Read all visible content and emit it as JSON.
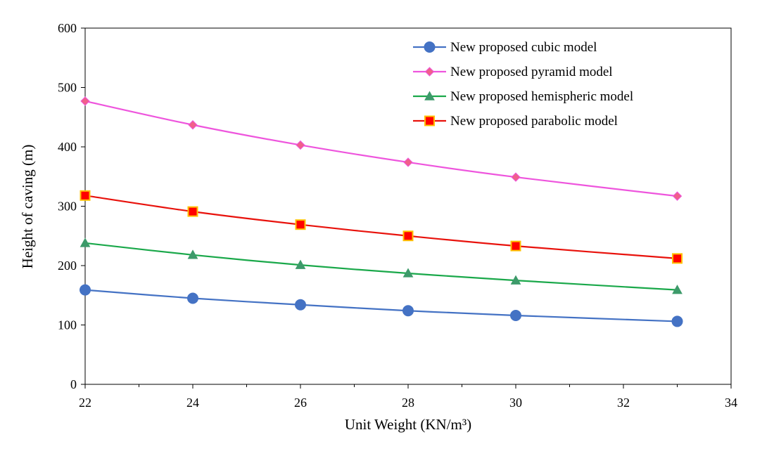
{
  "chart_data": {
    "type": "line",
    "title": "",
    "xlabel": "Unit Weight (KN/m³)",
    "ylabel": "Height of caving (m)",
    "xlim": [
      22,
      34
    ],
    "ylim": [
      0,
      600
    ],
    "x_ticks": [
      "22",
      "24",
      "26",
      "28",
      "30",
      "32",
      "34"
    ],
    "y_ticks": [
      "0",
      "100",
      "200",
      "300",
      "400",
      "500",
      "600"
    ],
    "grid": false,
    "legend_position": "top-right",
    "series": [
      {
        "name": "New proposed cubic model",
        "color": "#4472c4",
        "marker": "circle",
        "marker_fill": "#4472c4",
        "marker_stroke": "#4472c4",
        "x": [
          22,
          24,
          26,
          28,
          30,
          33
        ],
        "values": [
          159,
          145,
          134,
          124,
          116,
          106
        ]
      },
      {
        "name": "New proposed pyramid model",
        "color": "#ee55dd",
        "marker": "diamond",
        "marker_fill": "#f0608a",
        "marker_stroke": "#ee55dd",
        "x": [
          22,
          24,
          26,
          28,
          30,
          33
        ],
        "values": [
          477,
          437,
          403,
          374,
          349,
          317
        ]
      },
      {
        "name": "New proposed hemispheric model",
        "color": "#1aa84a",
        "marker": "triangle",
        "marker_fill": "#3d9a6a",
        "marker_stroke": "#3d9a6a",
        "x": [
          22,
          24,
          26,
          28,
          30,
          33
        ],
        "values": [
          238,
          218,
          201,
          187,
          175,
          159
        ]
      },
      {
        "name": "New proposed parabolic model",
        "color": "#e8120c",
        "marker": "square",
        "marker_fill": "#ff0000",
        "marker_stroke": "#ffc000",
        "x": [
          22,
          24,
          26,
          28,
          30,
          33
        ],
        "values": [
          318,
          291,
          269,
          250,
          233,
          212
        ]
      }
    ]
  }
}
